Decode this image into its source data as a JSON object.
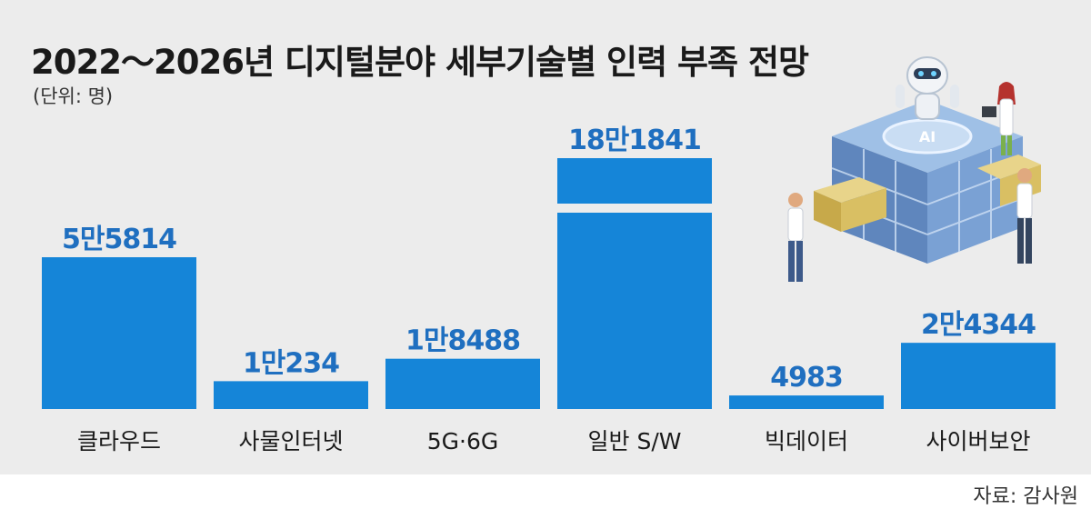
{
  "header": {
    "title": "2022～2026년 디지털분야 세부기술별 인력 부족 전망",
    "unit": "(단위: 명)"
  },
  "footer": {
    "source": "자료: 감사원"
  },
  "colors": {
    "bar": "#1585d8",
    "value_label": "#1f6fc0",
    "background": "#ececec"
  },
  "chart_data": {
    "type": "bar",
    "title": "2022～2026년 디지털분야 세부기술별 인력 부족 전망",
    "unit": "(단위: 명)",
    "categories": [
      "클라우드",
      "사물인터넷",
      "5G·6G",
      "일반 S/W",
      "빅데이터",
      "사이버보안"
    ],
    "values": [
      55814,
      10234,
      18488,
      181841,
      4983,
      24344
    ],
    "value_labels": [
      "5만5814",
      "1만234",
      "1만8488",
      "18만1841",
      "4983",
      "2만4344"
    ],
    "axis_break": {
      "category": "일반 S/W"
    },
    "grid": false,
    "legend": "none"
  }
}
